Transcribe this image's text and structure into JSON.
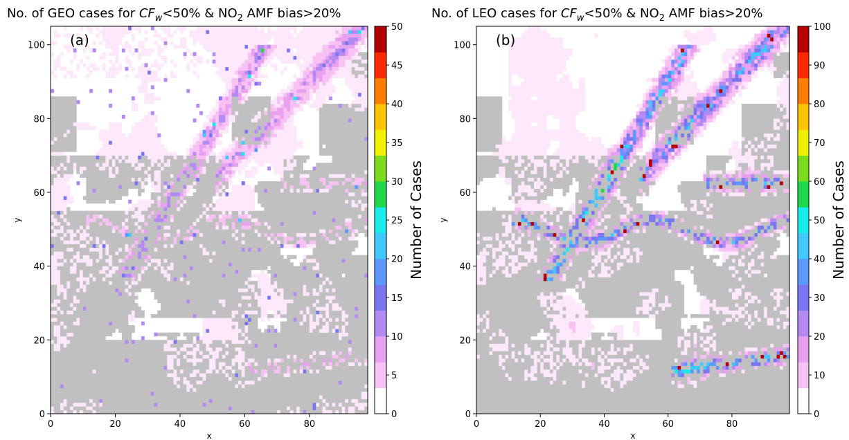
{
  "colors": {
    "land": "#c0c0c0",
    "background": "#ffffff",
    "colormap": [
      "#ffffff",
      "#fde8fb",
      "#f7c2f3",
      "#e8a0f0",
      "#b38af2",
      "#7a76f2",
      "#5d98ff",
      "#41c8ff",
      "#19ecec",
      "#1ed94b",
      "#7adc1a",
      "#f0f000",
      "#ffc400",
      "#ff7e00",
      "#ff2a00",
      "#b40000"
    ]
  },
  "chart_data": [
    {
      "type": "heatmap",
      "panel_label": "(a)",
      "title_parts": [
        "No. of GEO cases for ",
        "CF",
        "w",
        "<50% & NO",
        "2",
        " AMF bias>20%"
      ],
      "xlabel": "x",
      "ylabel": "y",
      "xlim": [
        0,
        98
      ],
      "ylim": [
        0,
        105
      ],
      "xticks": [
        0,
        20,
        40,
        60,
        80
      ],
      "yticks": [
        0,
        20,
        40,
        60,
        80,
        100
      ],
      "grid": false,
      "colorbar": {
        "label": "Number of Cases",
        "range": [
          0,
          50
        ],
        "ticks": [
          0,
          5,
          10,
          15,
          20,
          25,
          30,
          35,
          40,
          45,
          50
        ]
      },
      "value_level": "mostly 1-10 cases along bands, isolated 15-25"
    },
    {
      "type": "heatmap",
      "panel_label": "(b)",
      "title_parts": [
        "No. of LEO cases for ",
        "CF",
        "w",
        "<50% & NO",
        "2",
        " AMF bias>20%"
      ],
      "xlabel": "x",
      "ylabel": "y",
      "xlim": [
        0,
        98
      ],
      "ylim": [
        0,
        105
      ],
      "xticks": [
        0,
        20,
        40,
        60,
        80
      ],
      "yticks": [
        0,
        20,
        40,
        60,
        80,
        100
      ],
      "grid": false,
      "colorbar": {
        "label": "Number of Cases",
        "range": [
          0,
          100
        ],
        "ticks": [
          0,
          10,
          20,
          30,
          40,
          50,
          60,
          70,
          80,
          90,
          100
        ]
      },
      "value_level": "bands of 20-50 cases, hotspots up to ~100"
    }
  ]
}
